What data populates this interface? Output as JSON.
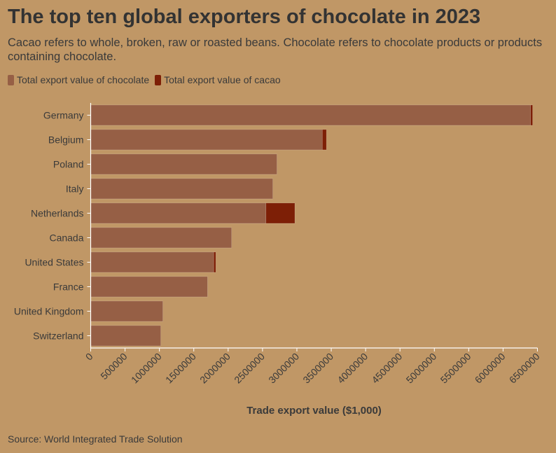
{
  "header": {
    "title": "The top ten global exporters of chocolate in 2023",
    "subtitle": "Cacao refers to whole, broken, raw or roasted beans. Chocolate refers to chocolate products or products containing chocolate."
  },
  "footer": {
    "source": "Source: World Integrated Trade Solution"
  },
  "colors": {
    "chocolate": "#965f45",
    "cacao": "#7d1f06",
    "background": "#c09766",
    "axis": "#ffffff"
  },
  "chart_data": {
    "type": "bar",
    "orientation": "horizontal",
    "stacked": true,
    "title": "The top ten global exporters of chocolate in 2023",
    "xlabel": "Trade export value ($1,000)",
    "ylabel": "",
    "xlim": [
      0,
      6500000
    ],
    "x_ticks": [
      0,
      500000,
      1000000,
      1500000,
      2000000,
      2500000,
      3000000,
      3500000,
      4000000,
      4500000,
      5000000,
      5500000,
      6000000,
      6500000
    ],
    "x_tick_labels": [
      "0",
      "500000",
      "1000000",
      "1500000",
      "2000000",
      "2500000",
      "3000000",
      "3500000",
      "4000000",
      "4500000",
      "5000000",
      "5500000",
      "6000000",
      "6500000"
    ],
    "grid": false,
    "legend_position": "top-left",
    "categories": [
      "Germany",
      "Belgium",
      "Poland",
      "Italy",
      "Netherlands",
      "Canada",
      "United States",
      "France",
      "United Kingdom",
      "Switzerland"
    ],
    "series": [
      {
        "name": "Total export value of chocolate",
        "color_key": "chocolate",
        "values": [
          6400000,
          3370000,
          2710000,
          2650000,
          2550000,
          2050000,
          1790000,
          1700000,
          1050000,
          1020000
        ]
      },
      {
        "name": "Total export value of cacao",
        "color_key": "cacao",
        "values": [
          30000,
          60000,
          0,
          0,
          420000,
          0,
          30000,
          0,
          0,
          0
        ]
      }
    ]
  }
}
